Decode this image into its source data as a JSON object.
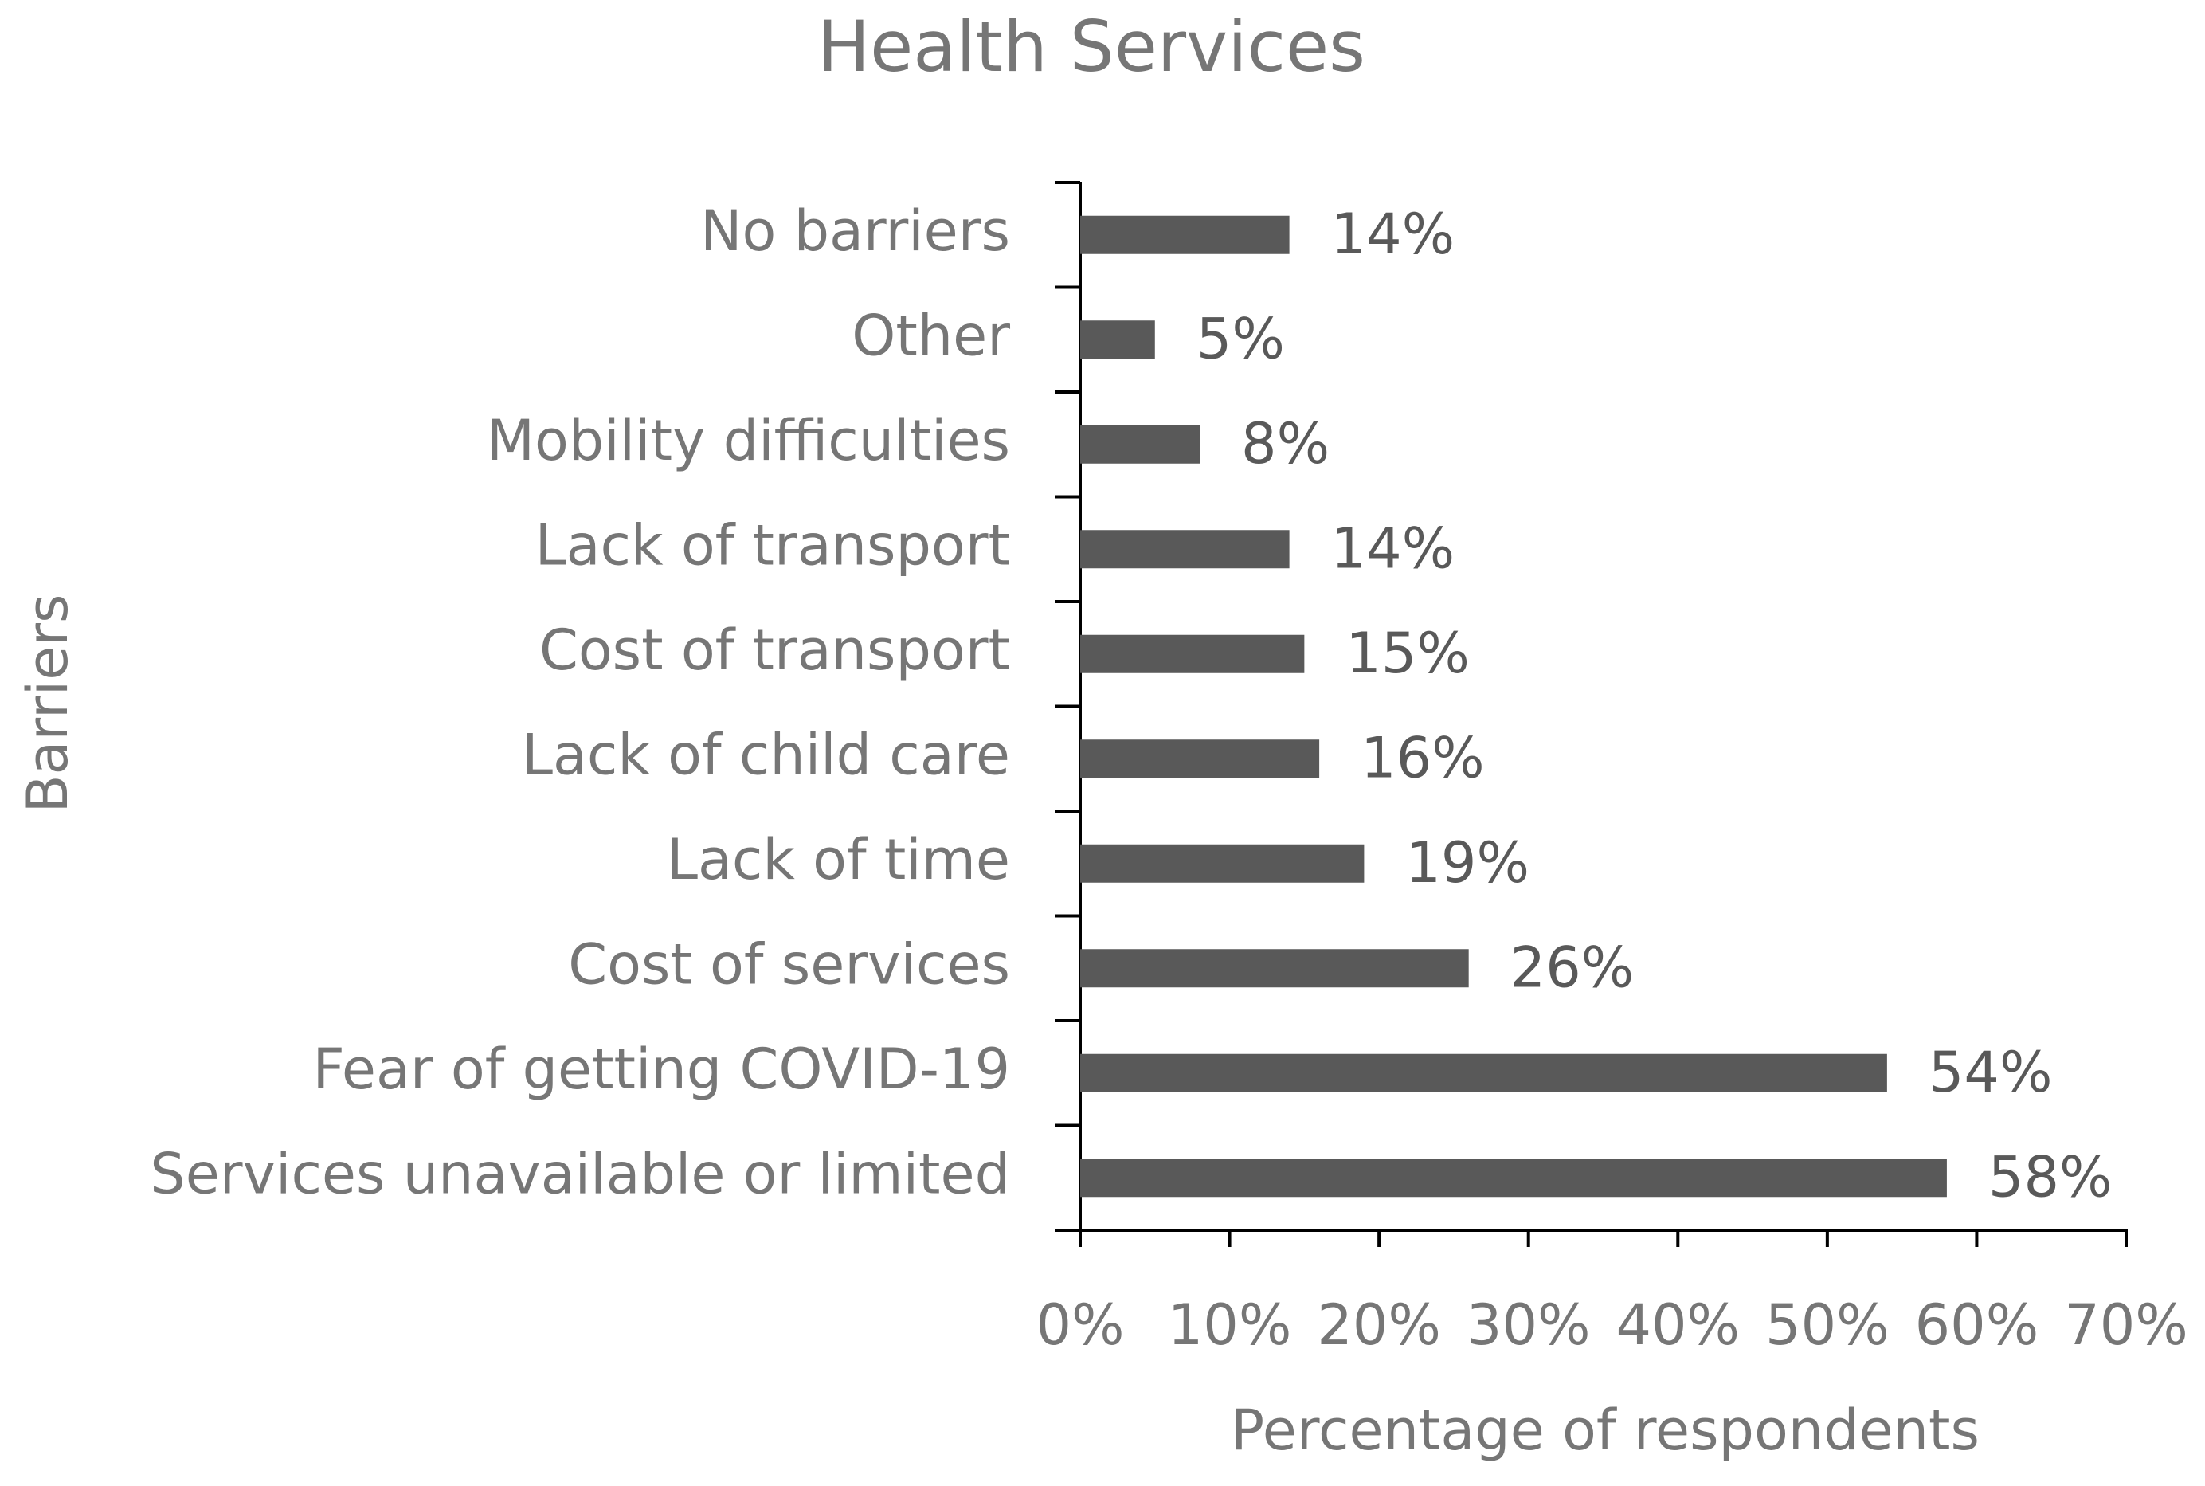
{
  "chart_data": {
    "type": "bar",
    "orientation": "horizontal",
    "title": "Health Services",
    "x_label": "Percentage of respondents",
    "y_label": "Barriers",
    "categories": [
      "No barriers",
      "Other",
      "Mobility difficulties",
      "Lack of transport",
      "Cost of transport",
      "Lack of child care",
      "Lack of time",
      "Cost of services",
      "Fear of getting COVID-19",
      "Services unavailable or limited"
    ],
    "values": [
      14,
      5,
      8,
      14,
      15,
      16,
      19,
      26,
      54,
      58
    ],
    "value_labels": [
      "14%",
      "5%",
      "8%",
      "14%",
      "15%",
      "16%",
      "19%",
      "26%",
      "54%",
      "58%"
    ],
    "color": "#595959",
    "xlim": [
      0,
      70
    ],
    "xticks": [
      {
        "value": 0,
        "label": "0%"
      },
      {
        "value": 10,
        "label": "10%"
      },
      {
        "value": 20,
        "label": "20%"
      },
      {
        "value": 30,
        "label": "30%"
      },
      {
        "value": 40,
        "label": "40%"
      },
      {
        "value": 50,
        "label": "50%"
      },
      {
        "value": 60,
        "label": "60%"
      },
      {
        "value": 70,
        "label": "70%"
      }
    ],
    "grid": false
  }
}
